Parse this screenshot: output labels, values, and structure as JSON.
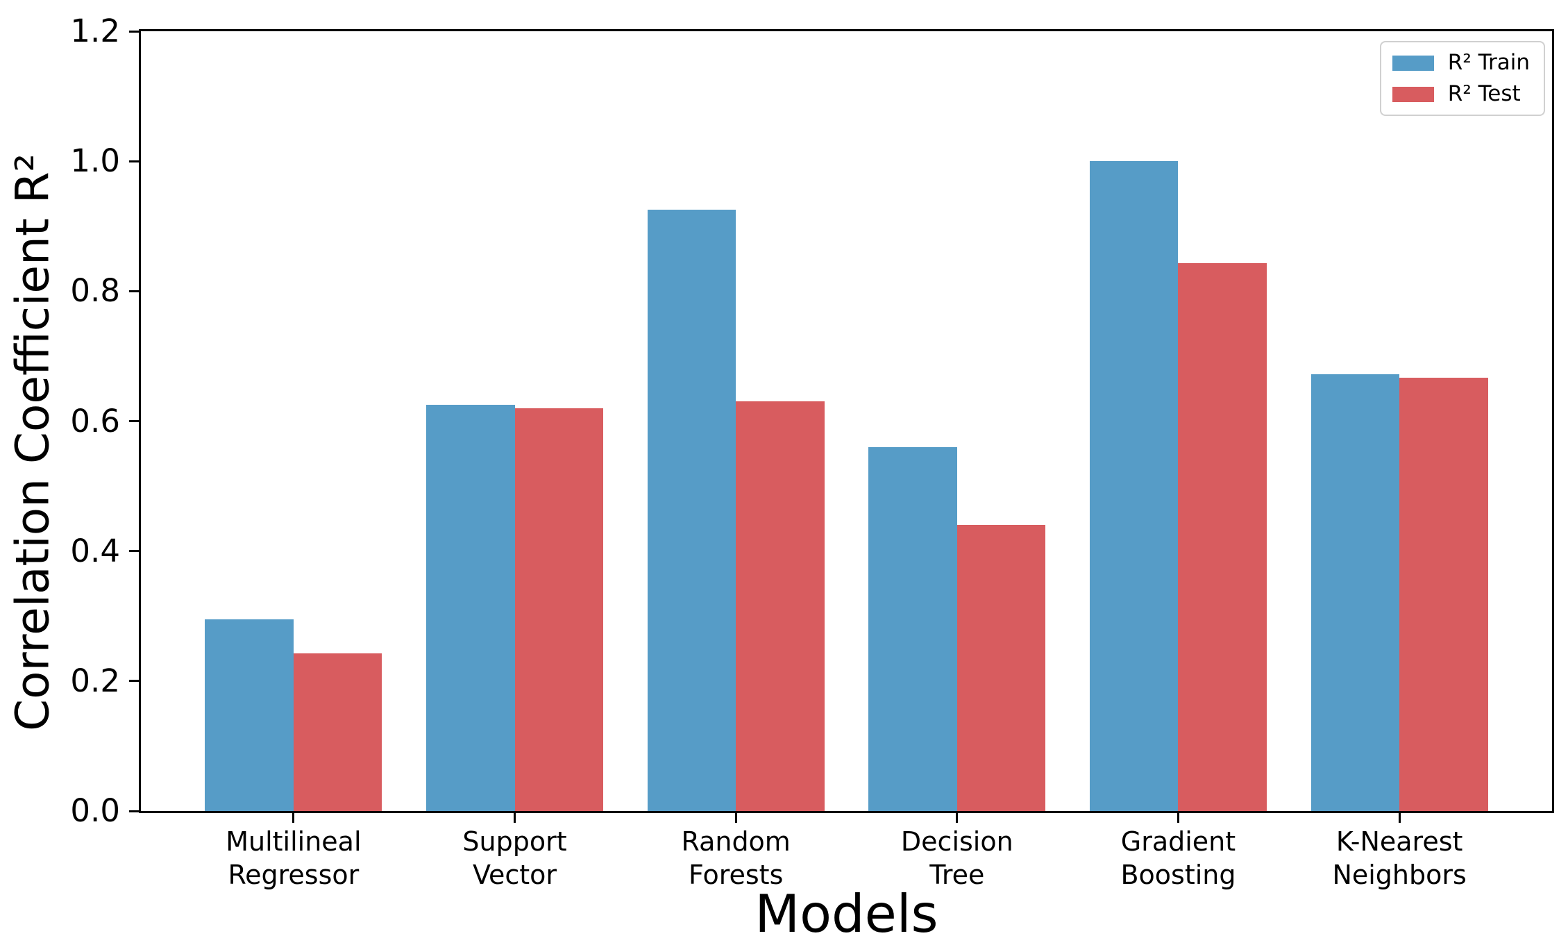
{
  "chart_data": {
    "type": "bar",
    "categories": [
      "Multilineal Regressor",
      "Support Vector",
      "Random Forests",
      "Decision Tree",
      "Gradient Boosting",
      "K-Nearest Neighbors"
    ],
    "category_label_lines": [
      [
        "Multilineal",
        "Regressor"
      ],
      [
        "Support",
        "Vector"
      ],
      [
        "Random",
        "Forests"
      ],
      [
        "Decision",
        "Tree"
      ],
      [
        "Gradient",
        "Boosting"
      ],
      [
        "K-Nearest",
        "Neighbors"
      ]
    ],
    "series": [
      {
        "name": "R² Train",
        "color": "#569CC7",
        "values": [
          0.295,
          0.625,
          0.925,
          0.56,
          1.0,
          0.672
        ]
      },
      {
        "name": "R² Test",
        "color": "#D85C5F",
        "values": [
          0.243,
          0.62,
          0.63,
          0.44,
          0.843,
          0.667
        ]
      }
    ],
    "title": "",
    "xlabel": "Models",
    "ylabel": "Correlation Coefficient R²",
    "ylim": [
      0,
      1.2
    ],
    "yticks": [
      0.0,
      0.2,
      0.4,
      0.6,
      0.8,
      1.0,
      1.2
    ],
    "ytick_labels": [
      "0.0",
      "0.2",
      "0.4",
      "0.6",
      "0.8",
      "1.0",
      "1.2"
    ],
    "grid": false,
    "legend_position": "upper-right",
    "axis_color": "#000000",
    "background_color": "#ffffff"
  }
}
